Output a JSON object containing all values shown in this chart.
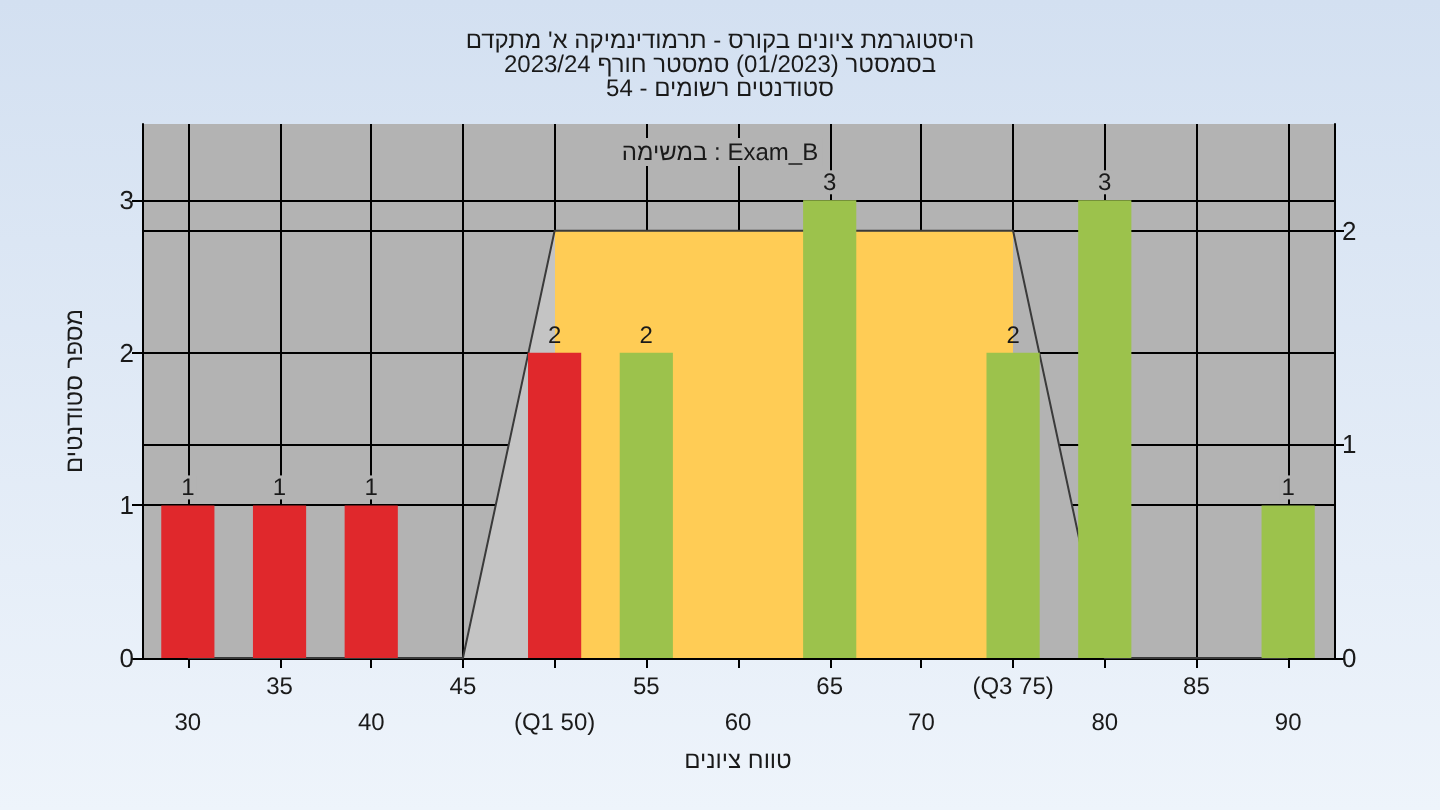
{
  "chart_data": {
    "type": "bar",
    "title": "היסטוגרמת ציונים בקורס - תרמודינמיקה א' מתקדם",
    "subtitle": "בסמסטר (01/2023) סמסטר חורף 2023/24\nסטודנטים רשומים - 54",
    "xlabel": "טווח ציונים",
    "ylabel": "מספר סטודנטים",
    "annotations": [
      "במשימה : Exam_B"
    ],
    "categories": [
      "30",
      "35",
      "40",
      "45",
      "(Q1 50)",
      "55",
      "60",
      "65",
      "70",
      "(Q3 75)",
      "80",
      "85",
      "90"
    ],
    "series": [
      {
        "type": "area",
        "axis": "y2",
        "color": "#ffcc55",
        "values": [
          0,
          0,
          0,
          0,
          2,
          2,
          2,
          2,
          2,
          2,
          0,
          0,
          0
        ]
      },
      {
        "colors": [
          "#e0282c",
          "#e0282c",
          "#e0282c",
          "#e0282c",
          "#e0282c",
          "#9cc24c",
          "#9cc24c",
          "#9cc24c",
          "#9cc24c",
          "#9cc24c",
          "#9cc24c",
          "#9cc24c",
          "#9cc24c"
        ],
        "values": [
          1,
          1,
          1,
          0,
          2,
          2,
          0,
          3,
          0,
          2,
          3,
          0,
          1
        ],
        "value_labels": [
          "1",
          "1",
          "1",
          null,
          "2",
          "2",
          null,
          "3",
          null,
          "2",
          "3",
          null,
          "1"
        ]
      }
    ],
    "ylim": [
      0,
      3.5
    ],
    "yticks": [
      0,
      1,
      2,
      3
    ],
    "y2lim": [
      0,
      2.5
    ],
    "y2ticks": [
      0,
      1,
      2
    ],
    "grid": true
  }
}
